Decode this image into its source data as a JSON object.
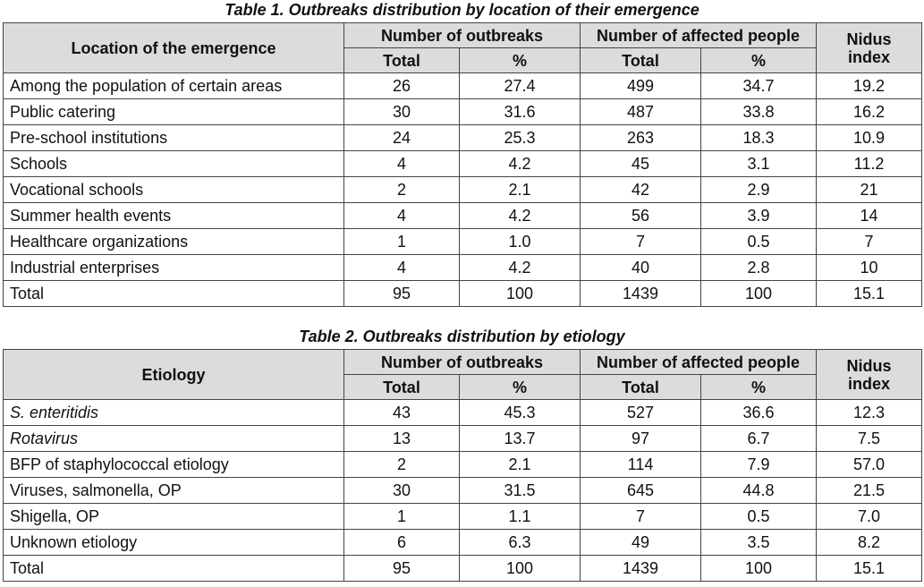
{
  "table1": {
    "caption": "Table 1.  Outbreaks distribution by location of their emergence",
    "header": {
      "first_col": "Location of the emergence",
      "group_outbreaks": "Number of outbreaks",
      "group_affected": "Number of affected people",
      "nidus": "Nidus index",
      "total": "Total",
      "percent": "%"
    },
    "rows": [
      [
        "Among the population of certain areas",
        "26",
        "27.4",
        "499",
        "34.7",
        "19.2"
      ],
      [
        "Public catering",
        "30",
        "31.6",
        "487",
        "33.8",
        "16.2"
      ],
      [
        "Pre-school institutions",
        "24",
        "25.3",
        "263",
        "18.3",
        "10.9"
      ],
      [
        "Schools",
        "4",
        "4.2",
        "45",
        "3.1",
        "11.2"
      ],
      [
        "Vocational schools",
        "2",
        "2.1",
        "42",
        "2.9",
        "21"
      ],
      [
        "Summer health events",
        "4",
        "4.2",
        "56",
        "3.9",
        "14"
      ],
      [
        "Healthcare organizations",
        "1",
        "1.0",
        "7",
        "0.5",
        "7"
      ],
      [
        "Industrial enterprises",
        "4",
        "4.2",
        "40",
        "2.8",
        "10"
      ],
      [
        "Total",
        "95",
        "100",
        "1439",
        "100",
        "15.1"
      ]
    ]
  },
  "table2": {
    "caption": "Table 2. Outbreaks distribution by etiology",
    "header": {
      "first_col": "Etiology",
      "group_outbreaks": "Number of outbreaks",
      "group_affected": "Number of affected people",
      "nidus": "Nidus index",
      "total": "Total",
      "percent": "%"
    },
    "rows": [
      [
        "S. enteritidis",
        "43",
        "45.3",
        "527",
        "36.6",
        "12.3"
      ],
      [
        "Rotavirus",
        "13",
        "13.7",
        "97",
        "6.7",
        "7.5"
      ],
      [
        "BFP of staphylococcal etiology",
        "2",
        "2.1",
        "114",
        "7.9",
        "57.0"
      ],
      [
        "Viruses, salmonella, OP",
        "30",
        "31.5",
        "645",
        "44.8",
        "21.5"
      ],
      [
        "Shigella, OP",
        "1",
        "1.1",
        "7",
        "0.5",
        "7.0"
      ],
      [
        "Unknown etiology",
        "6",
        "6.3",
        "49",
        "3.5",
        "8.2"
      ],
      [
        "Total",
        "95",
        "100",
        "1439",
        "100",
        "15.1"
      ]
    ],
    "italic_rows": [
      0,
      1
    ]
  }
}
